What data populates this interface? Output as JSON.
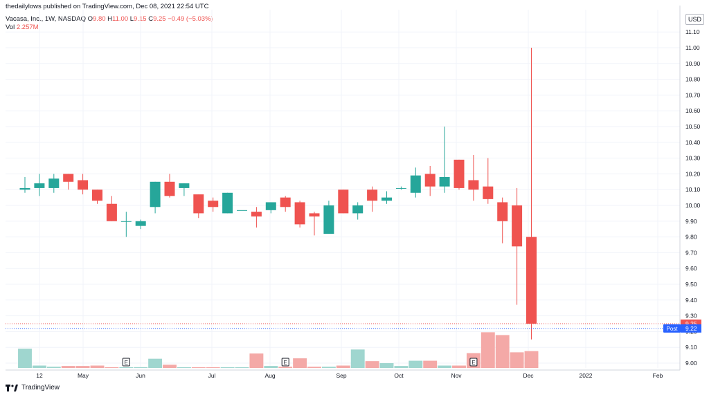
{
  "header": {
    "published_by": "thedailylows published on TradingView.com, Dec 08, 2021 22:54 UTC"
  },
  "symbol": {
    "name": "Vacasa, Inc., 1W, NASDAQ",
    "o_label": "O",
    "o_value": "9.80",
    "h_label": "H",
    "h_value": "11.00",
    "l_label": "L",
    "l_value": "9.15",
    "c_label": "C",
    "c_value": "9.25",
    "change": "−0.49 (−5.03%)"
  },
  "volume": {
    "label": "Vol",
    "value": "2.257M"
  },
  "currency": "USD",
  "footer": {
    "brand": "TradingView"
  },
  "colors": {
    "up": "#26a69a",
    "down": "#ef5350",
    "vol_up": "#9fd6cf",
    "vol_down": "#f4a9a7",
    "post": "#2962ff"
  },
  "chart_data": {
    "type": "candlestick",
    "interval": "1W",
    "y_ticks": [
      "9.00",
      "9.10",
      "9.20",
      "9.30",
      "9.40",
      "9.50",
      "9.60",
      "9.70",
      "9.80",
      "9.90",
      "10.00",
      "10.10",
      "10.20",
      "10.30",
      "10.40",
      "10.50",
      "10.60",
      "10.70",
      "10.80",
      "10.90",
      "11.00",
      "11.10"
    ],
    "x_ticks": [
      "12",
      "May",
      "Jun",
      "Jul",
      "Aug",
      "Sep",
      "Oct",
      "Nov",
      "Dec",
      "2022",
      "Feb"
    ],
    "candles": [
      {
        "o": 10.1,
        "h": 10.18,
        "l": 10.08,
        "c": 10.11
      },
      {
        "o": 10.11,
        "h": 10.2,
        "l": 10.06,
        "c": 10.14
      },
      {
        "o": 10.11,
        "h": 10.2,
        "l": 10.08,
        "c": 10.17
      },
      {
        "o": 10.2,
        "h": 10.2,
        "l": 10.1,
        "c": 10.15
      },
      {
        "o": 10.16,
        "h": 10.2,
        "l": 10.07,
        "c": 10.1
      },
      {
        "o": 10.1,
        "h": 10.1,
        "l": 10.01,
        "c": 10.03
      },
      {
        "o": 10.01,
        "h": 10.06,
        "l": 9.9,
        "c": 9.9
      },
      {
        "o": 9.9,
        "h": 9.96,
        "l": 9.8,
        "c": 9.9
      },
      {
        "o": 9.87,
        "h": 9.91,
        "l": 9.85,
        "c": 9.9
      },
      {
        "o": 9.99,
        "h": 10.15,
        "l": 9.95,
        "c": 10.15
      },
      {
        "o": 10.15,
        "h": 10.2,
        "l": 10.05,
        "c": 10.06
      },
      {
        "o": 10.11,
        "h": 10.14,
        "l": 10.06,
        "c": 10.14
      },
      {
        "o": 10.07,
        "h": 10.07,
        "l": 9.92,
        "c": 9.95
      },
      {
        "o": 10.03,
        "h": 10.05,
        "l": 9.96,
        "c": 9.99
      },
      {
        "o": 9.95,
        "h": 10.08,
        "l": 9.95,
        "c": 10.08
      },
      {
        "o": 9.97,
        "h": 9.97,
        "l": 9.97,
        "c": 9.97
      },
      {
        "o": 9.96,
        "h": 9.99,
        "l": 9.86,
        "c": 9.93
      },
      {
        "o": 9.97,
        "h": 10.02,
        "l": 9.95,
        "c": 10.02
      },
      {
        "o": 10.05,
        "h": 10.06,
        "l": 9.96,
        "c": 9.99
      },
      {
        "o": 10.02,
        "h": 10.03,
        "l": 9.86,
        "c": 9.88
      },
      {
        "o": 9.95,
        "h": 9.96,
        "l": 9.81,
        "c": 9.93
      },
      {
        "o": 9.82,
        "h": 10.03,
        "l": 9.82,
        "c": 10.0
      },
      {
        "o": 10.1,
        "h": 10.1,
        "l": 9.95,
        "c": 9.95
      },
      {
        "o": 9.95,
        "h": 10.02,
        "l": 9.91,
        "c": 10.0
      },
      {
        "o": 10.1,
        "h": 10.12,
        "l": 9.96,
        "c": 10.03
      },
      {
        "o": 10.03,
        "h": 10.09,
        "l": 10.01,
        "c": 10.05
      },
      {
        "o": 10.11,
        "h": 10.12,
        "l": 10.1,
        "c": 10.11
      },
      {
        "o": 10.08,
        "h": 10.24,
        "l": 10.05,
        "c": 10.19
      },
      {
        "o": 10.2,
        "h": 10.25,
        "l": 10.06,
        "c": 10.12
      },
      {
        "o": 10.12,
        "h": 10.5,
        "l": 10.08,
        "c": 10.18
      },
      {
        "o": 10.29,
        "h": 10.29,
        "l": 10.1,
        "c": 10.11
      },
      {
        "o": 10.16,
        "h": 10.32,
        "l": 10.03,
        "c": 10.1
      },
      {
        "o": 10.12,
        "h": 10.3,
        "l": 10.01,
        "c": 10.04
      },
      {
        "o": 10.02,
        "h": 10.05,
        "l": 9.76,
        "c": 9.9
      },
      {
        "o": 10.0,
        "h": 10.11,
        "l": 9.37,
        "c": 9.74
      },
      {
        "o": 9.8,
        "h": 11.0,
        "l": 9.15,
        "c": 9.25
      }
    ],
    "volume": [
      {
        "v": 48,
        "dir": "up"
      },
      {
        "v": 6,
        "dir": "up"
      },
      {
        "v": 3,
        "dir": "up"
      },
      {
        "v": 5,
        "dir": "down"
      },
      {
        "v": 5,
        "dir": "down"
      },
      {
        "v": 6,
        "dir": "down"
      },
      {
        "v": 1,
        "dir": "down"
      },
      {
        "v": 1,
        "dir": "up"
      },
      {
        "v": 2,
        "dir": "up"
      },
      {
        "v": 23,
        "dir": "up"
      },
      {
        "v": 8,
        "dir": "down"
      },
      {
        "v": 1,
        "dir": "up"
      },
      {
        "v": 0.5,
        "dir": "down"
      },
      {
        "v": 0.5,
        "dir": "down"
      },
      {
        "v": 0.5,
        "dir": "up"
      },
      {
        "v": 0.5,
        "dir": "up"
      },
      {
        "v": 36,
        "dir": "down"
      },
      {
        "v": 5,
        "dir": "up"
      },
      {
        "v": 3,
        "dir": "down"
      },
      {
        "v": 24,
        "dir": "down"
      },
      {
        "v": 3,
        "dir": "down"
      },
      {
        "v": 3,
        "dir": "up"
      },
      {
        "v": 6,
        "dir": "down"
      },
      {
        "v": 46,
        "dir": "up"
      },
      {
        "v": 17,
        "dir": "down"
      },
      {
        "v": 12,
        "dir": "up"
      },
      {
        "v": 5,
        "dir": "up"
      },
      {
        "v": 18,
        "dir": "up"
      },
      {
        "v": 18,
        "dir": "down"
      },
      {
        "v": 6,
        "dir": "up"
      },
      {
        "v": 6,
        "dir": "down"
      },
      {
        "v": 37,
        "dir": "down"
      },
      {
        "v": 89,
        "dir": "down"
      },
      {
        "v": 82,
        "dir": "down"
      },
      {
        "v": 39,
        "dir": "down"
      },
      {
        "v": 42,
        "dir": "down"
      }
    ],
    "earnings_markers": [
      {
        "bar": 7,
        "label": "E"
      },
      {
        "bar": 18,
        "label": "E"
      },
      {
        "bar": 31,
        "label": "E"
      }
    ],
    "last_price": {
      "value": 9.25,
      "label": "9.25"
    },
    "post_price": {
      "value": 9.22,
      "label": "9.22",
      "tag": "Post"
    }
  }
}
